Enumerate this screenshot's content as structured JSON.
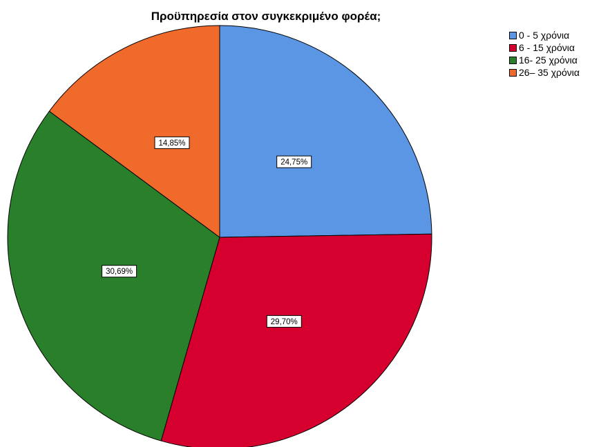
{
  "chart_data": {
    "type": "pie",
    "title": "Προϋπηρεσία στον συγκεκριμένο φορέα;",
    "categories": [
      "0 - 5 χρόνια",
      "6 - 15 χρόνια",
      "16- 25 χρόνια",
      "26– 35 χρόνια"
    ],
    "values": [
      24.75,
      29.7,
      30.69,
      14.85
    ],
    "value_labels": [
      "24,75%",
      "29,70%",
      "30,69%",
      "14,85%"
    ],
    "colors": [
      "#5a96e3",
      "#d6002f",
      "#2a7f2a",
      "#f06a2b"
    ],
    "start": "12 o'clock",
    "direction": "clockwise",
    "legend_position": "top-right"
  }
}
